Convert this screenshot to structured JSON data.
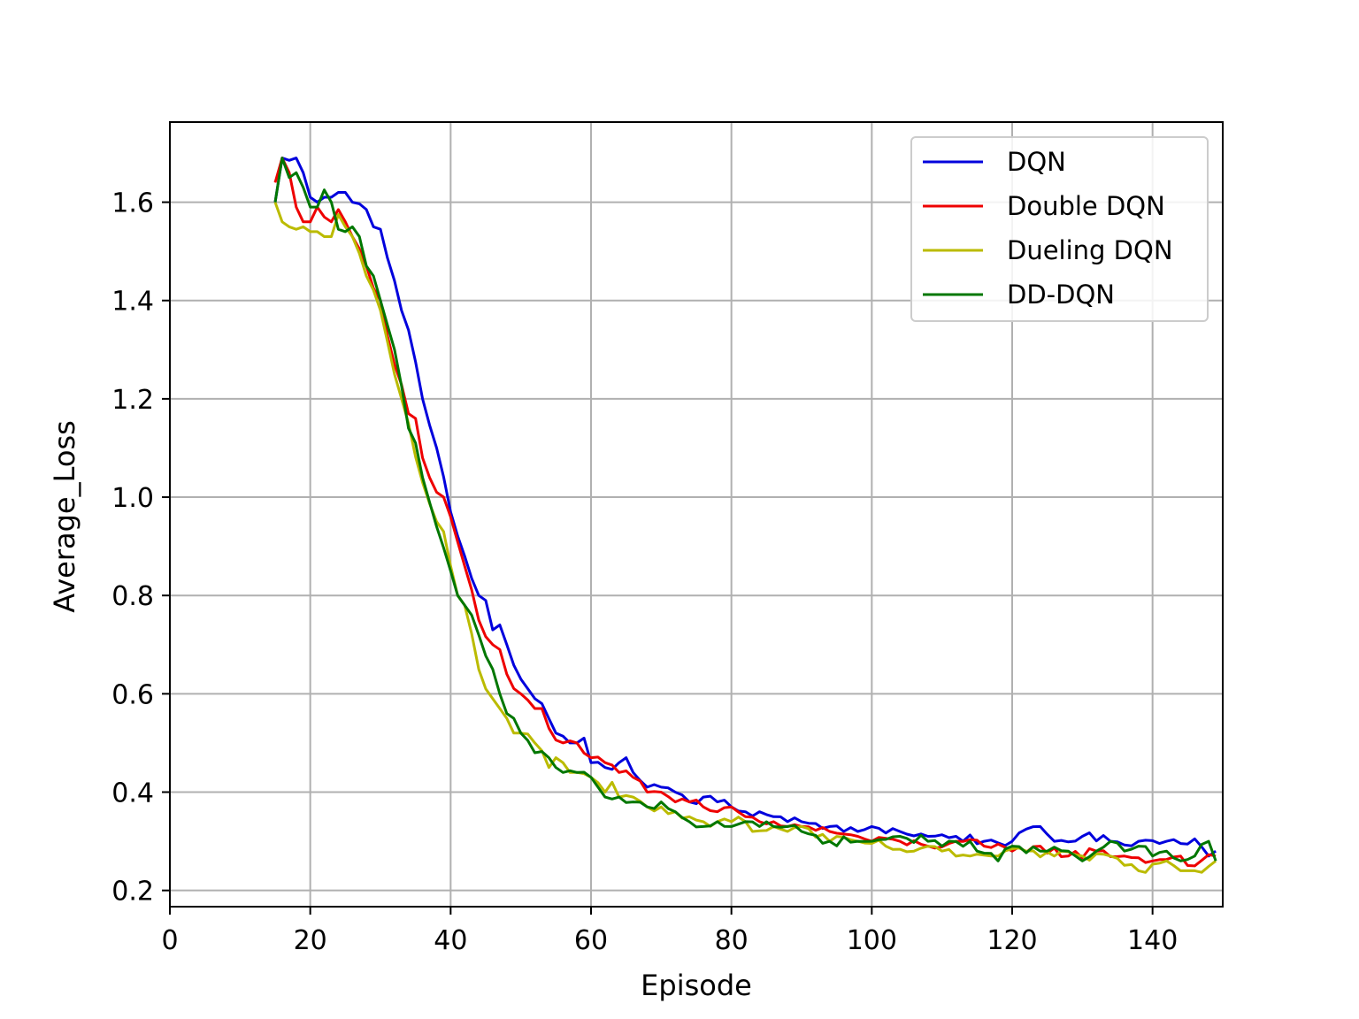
{
  "chart_data": {
    "type": "line",
    "title": "",
    "xlabel": "Episode",
    "ylabel": "Average_Loss",
    "xlim": [
      0,
      150
    ],
    "ylim": [
      0.167,
      1.763
    ],
    "xticks": [
      0,
      20,
      40,
      60,
      80,
      100,
      120,
      140
    ],
    "yticks": [
      0.2,
      0.4,
      0.6,
      0.8,
      1.0,
      1.2,
      1.4,
      1.6
    ],
    "xtick_labels": [
      "0",
      "20",
      "40",
      "60",
      "80",
      "100",
      "120",
      "140"
    ],
    "ytick_labels": [
      "0.2",
      "0.4",
      "0.6",
      "0.8",
      "1.0",
      "1.2",
      "1.4",
      "1.6"
    ],
    "grid": true,
    "legend_position": "top-right",
    "x_start": 15,
    "x_end": 149,
    "series": [
      {
        "name": "DQN",
        "color": "#0000dd",
        "anchors": [
          [
            15,
            1.6
          ],
          [
            16,
            1.69
          ],
          [
            17,
            1.685
          ],
          [
            18,
            1.69
          ],
          [
            19,
            1.66
          ],
          [
            20,
            1.61
          ],
          [
            21,
            1.6
          ],
          [
            22,
            1.61
          ],
          [
            23,
            1.61
          ],
          [
            24,
            1.62
          ],
          [
            25,
            1.62
          ],
          [
            26,
            1.6
          ],
          [
            28,
            1.585
          ],
          [
            29,
            1.55
          ],
          [
            30,
            1.545
          ],
          [
            32,
            1.44
          ],
          [
            33,
            1.38
          ],
          [
            34,
            1.34
          ],
          [
            36,
            1.2
          ],
          [
            38,
            1.1
          ],
          [
            40,
            0.97
          ],
          [
            42,
            0.88
          ],
          [
            44,
            0.8
          ],
          [
            45,
            0.79
          ],
          [
            46,
            0.73
          ],
          [
            47,
            0.74
          ],
          [
            48,
            0.7
          ],
          [
            50,
            0.63
          ],
          [
            51,
            0.61
          ],
          [
            53,
            0.58
          ],
          [
            55,
            0.52
          ],
          [
            57,
            0.5
          ],
          [
            58,
            0.5
          ],
          [
            59,
            0.51
          ],
          [
            60,
            0.46
          ],
          [
            62,
            0.45
          ],
          [
            64,
            0.46
          ],
          [
            65,
            0.47
          ],
          [
            66,
            0.44
          ],
          [
            68,
            0.41
          ],
          [
            70,
            0.41
          ],
          [
            72,
            0.4
          ],
          [
            74,
            0.38
          ],
          [
            76,
            0.39
          ],
          [
            78,
            0.38
          ],
          [
            80,
            0.37
          ],
          [
            82,
            0.36
          ],
          [
            84,
            0.36
          ],
          [
            86,
            0.35
          ],
          [
            88,
            0.34
          ],
          [
            90,
            0.34
          ],
          [
            94,
            0.33
          ],
          [
            96,
            0.32
          ],
          [
            98,
            0.32
          ],
          [
            100,
            0.33
          ],
          [
            104,
            0.32
          ],
          [
            108,
            0.31
          ],
          [
            112,
            0.31
          ],
          [
            116,
            0.3
          ],
          [
            120,
            0.3
          ],
          [
            124,
            0.33
          ],
          [
            126,
            0.3
          ],
          [
            130,
            0.31
          ],
          [
            134,
            0.3
          ],
          [
            138,
            0.3
          ],
          [
            142,
            0.3
          ],
          [
            146,
            0.305
          ],
          [
            148,
            0.27
          ],
          [
            149,
            0.28
          ]
        ]
      },
      {
        "name": "Double DQN",
        "color": "#ee0000",
        "anchors": [
          [
            15,
            1.64
          ],
          [
            16,
            1.69
          ],
          [
            17,
            1.66
          ],
          [
            18,
            1.59
          ],
          [
            19,
            1.56
          ],
          [
            20,
            1.56
          ],
          [
            21,
            1.59
          ],
          [
            22,
            1.57
          ],
          [
            23,
            1.56
          ],
          [
            24,
            1.585
          ],
          [
            25,
            1.56
          ],
          [
            26,
            1.53
          ],
          [
            28,
            1.47
          ],
          [
            30,
            1.4
          ],
          [
            32,
            1.27
          ],
          [
            34,
            1.17
          ],
          [
            35,
            1.16
          ],
          [
            36,
            1.08
          ],
          [
            37,
            1.04
          ],
          [
            38,
            1.01
          ],
          [
            39,
            1.0
          ],
          [
            40,
            0.96
          ],
          [
            42,
            0.86
          ],
          [
            44,
            0.75
          ],
          [
            46,
            0.7
          ],
          [
            47,
            0.69
          ],
          [
            48,
            0.64
          ],
          [
            50,
            0.6
          ],
          [
            52,
            0.57
          ],
          [
            53,
            0.57
          ],
          [
            54,
            0.53
          ],
          [
            56,
            0.5
          ],
          [
            58,
            0.5
          ],
          [
            60,
            0.47
          ],
          [
            62,
            0.46
          ],
          [
            64,
            0.44
          ],
          [
            66,
            0.43
          ],
          [
            68,
            0.4
          ],
          [
            70,
            0.4
          ],
          [
            72,
            0.38
          ],
          [
            74,
            0.38
          ],
          [
            76,
            0.37
          ],
          [
            78,
            0.36
          ],
          [
            80,
            0.37
          ],
          [
            82,
            0.35
          ],
          [
            84,
            0.34
          ],
          [
            86,
            0.34
          ],
          [
            88,
            0.33
          ],
          [
            90,
            0.33
          ],
          [
            94,
            0.32
          ],
          [
            98,
            0.31
          ],
          [
            100,
            0.3
          ],
          [
            104,
            0.3
          ],
          [
            108,
            0.29
          ],
          [
            112,
            0.3
          ],
          [
            116,
            0.29
          ],
          [
            120,
            0.28
          ],
          [
            124,
            0.29
          ],
          [
            128,
            0.27
          ],
          [
            132,
            0.28
          ],
          [
            136,
            0.27
          ],
          [
            140,
            0.26
          ],
          [
            144,
            0.27
          ],
          [
            146,
            0.25
          ],
          [
            149,
            0.27
          ]
        ]
      },
      {
        "name": "Dueling DQN",
        "color": "#bbbb00",
        "anchors": [
          [
            15,
            1.6
          ],
          [
            16,
            1.56
          ],
          [
            17,
            1.55
          ],
          [
            18,
            1.545
          ],
          [
            19,
            1.55
          ],
          [
            20,
            1.54
          ],
          [
            21,
            1.54
          ],
          [
            22,
            1.53
          ],
          [
            23,
            1.53
          ],
          [
            24,
            1.575
          ],
          [
            25,
            1.55
          ],
          [
            26,
            1.53
          ],
          [
            28,
            1.45
          ],
          [
            30,
            1.38
          ],
          [
            32,
            1.25
          ],
          [
            34,
            1.15
          ],
          [
            36,
            1.03
          ],
          [
            38,
            0.95
          ],
          [
            39,
            0.93
          ],
          [
            40,
            0.86
          ],
          [
            41,
            0.8
          ],
          [
            42,
            0.78
          ],
          [
            44,
            0.65
          ],
          [
            45,
            0.61
          ],
          [
            46,
            0.59
          ],
          [
            47,
            0.57
          ],
          [
            48,
            0.55
          ],
          [
            49,
            0.52
          ],
          [
            50,
            0.52
          ],
          [
            52,
            0.5
          ],
          [
            54,
            0.45
          ],
          [
            55,
            0.47
          ],
          [
            56,
            0.46
          ],
          [
            57,
            0.44
          ],
          [
            58,
            0.44
          ],
          [
            60,
            0.43
          ],
          [
            62,
            0.4
          ],
          [
            63,
            0.42
          ],
          [
            64,
            0.39
          ],
          [
            66,
            0.39
          ],
          [
            68,
            0.37
          ],
          [
            70,
            0.37
          ],
          [
            72,
            0.36
          ],
          [
            74,
            0.35
          ],
          [
            76,
            0.34
          ],
          [
            78,
            0.34
          ],
          [
            80,
            0.34
          ],
          [
            82,
            0.34
          ],
          [
            83,
            0.32
          ],
          [
            86,
            0.33
          ],
          [
            88,
            0.32
          ],
          [
            90,
            0.33
          ],
          [
            94,
            0.3
          ],
          [
            98,
            0.3
          ],
          [
            102,
            0.29
          ],
          [
            106,
            0.28
          ],
          [
            110,
            0.28
          ],
          [
            114,
            0.27
          ],
          [
            118,
            0.27
          ],
          [
            122,
            0.28
          ],
          [
            126,
            0.27
          ],
          [
            130,
            0.27
          ],
          [
            134,
            0.27
          ],
          [
            138,
            0.24
          ],
          [
            142,
            0.26
          ],
          [
            146,
            0.24
          ],
          [
            149,
            0.26
          ]
        ]
      },
      {
        "name": "DD-DQN",
        "color": "#007700",
        "anchors": [
          [
            15,
            1.6
          ],
          [
            16,
            1.69
          ],
          [
            17,
            1.65
          ],
          [
            18,
            1.66
          ],
          [
            19,
            1.63
          ],
          [
            20,
            1.59
          ],
          [
            21,
            1.59
          ],
          [
            22,
            1.625
          ],
          [
            23,
            1.6
          ],
          [
            24,
            1.545
          ],
          [
            25,
            1.54
          ],
          [
            26,
            1.55
          ],
          [
            27,
            1.53
          ],
          [
            28,
            1.47
          ],
          [
            29,
            1.45
          ],
          [
            30,
            1.4
          ],
          [
            31,
            1.35
          ],
          [
            32,
            1.3
          ],
          [
            34,
            1.14
          ],
          [
            35,
            1.11
          ],
          [
            36,
            1.04
          ],
          [
            37,
            0.99
          ],
          [
            38,
            0.94
          ],
          [
            40,
            0.85
          ],
          [
            41,
            0.8
          ],
          [
            42,
            0.78
          ],
          [
            44,
            0.72
          ],
          [
            46,
            0.65
          ],
          [
            47,
            0.6
          ],
          [
            48,
            0.56
          ],
          [
            49,
            0.55
          ],
          [
            50,
            0.52
          ],
          [
            52,
            0.48
          ],
          [
            54,
            0.47
          ],
          [
            55,
            0.45
          ],
          [
            56,
            0.44
          ],
          [
            58,
            0.44
          ],
          [
            60,
            0.43
          ],
          [
            61,
            0.41
          ],
          [
            62,
            0.39
          ],
          [
            64,
            0.39
          ],
          [
            66,
            0.38
          ],
          [
            68,
            0.37
          ],
          [
            70,
            0.38
          ],
          [
            72,
            0.36
          ],
          [
            74,
            0.34
          ],
          [
            76,
            0.33
          ],
          [
            78,
            0.34
          ],
          [
            80,
            0.33
          ],
          [
            82,
            0.34
          ],
          [
            84,
            0.33
          ],
          [
            86,
            0.33
          ],
          [
            88,
            0.33
          ],
          [
            90,
            0.32
          ],
          [
            94,
            0.3
          ],
          [
            98,
            0.3
          ],
          [
            100,
            0.3
          ],
          [
            104,
            0.31
          ],
          [
            108,
            0.3
          ],
          [
            110,
            0.29
          ],
          [
            114,
            0.3
          ],
          [
            118,
            0.26
          ],
          [
            120,
            0.29
          ],
          [
            124,
            0.28
          ],
          [
            128,
            0.28
          ],
          [
            130,
            0.26
          ],
          [
            132,
            0.28
          ],
          [
            134,
            0.3
          ],
          [
            136,
            0.28
          ],
          [
            138,
            0.29
          ],
          [
            140,
            0.27
          ],
          [
            142,
            0.28
          ],
          [
            144,
            0.26
          ],
          [
            146,
            0.27
          ],
          [
            148,
            0.3
          ],
          [
            149,
            0.26
          ]
        ]
      }
    ]
  }
}
